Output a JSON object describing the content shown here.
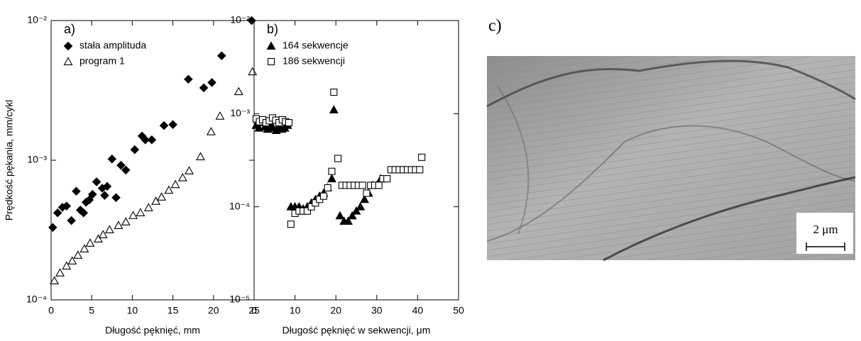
{
  "chart_data": [
    {
      "type": "scatter",
      "title": "a)",
      "x_label": "Długość pęknięć,  mm",
      "y_label": "Prędkość pękania,  mm/cykl",
      "xlim": [
        0,
        25
      ],
      "xticks": [
        0,
        5,
        10,
        15,
        20,
        25
      ],
      "ylim": [
        0.0001,
        0.01
      ],
      "y_scale": "log",
      "yticks": [
        {
          "value": 0.0001,
          "label": "10⁻⁴"
        },
        {
          "value": 0.001,
          "label": "10⁻³"
        },
        {
          "value": 0.01,
          "label": "10⁻²"
        }
      ],
      "legend": "upper left",
      "series": [
        {
          "name": "stała amplituda",
          "marker": "diamond",
          "filled": true,
          "color": "#000000",
          "x": [
            0.2,
            0.8,
            1.4,
            1.9,
            2.5,
            3.1,
            3.6,
            4.0,
            4.3,
            4.7,
            5.1,
            5.6,
            6.3,
            6.6,
            6.9,
            7.5,
            8.0,
            8.6,
            9.2,
            10.3,
            11.2,
            11.6,
            12.4,
            13.9,
            15.0,
            16.9,
            18.8,
            19.8,
            21.0,
            24.7
          ],
          "values": [
            0.00033,
            0.00042,
            0.00046,
            0.00047,
            0.00037,
            0.0006,
            0.00044,
            0.00042,
            0.0005,
            0.00052,
            0.00057,
            0.0007,
            0.00063,
            0.00056,
            0.00065,
            0.00102,
            0.00054,
            0.00092,
            0.00085,
            0.00119,
            0.00149,
            0.0014,
            0.0014,
            0.00177,
            0.0018,
            0.0038,
            0.0033,
            0.0036,
            0.0056,
            0.01
          ]
        },
        {
          "name": "program 1",
          "marker": "triangle",
          "filled": false,
          "color": "#000000",
          "x": [
            0.4,
            1.1,
            1.9,
            2.6,
            3.3,
            4.1,
            4.8,
            5.8,
            6.4,
            7.2,
            8.3,
            9.2,
            10.1,
            11.0,
            12.0,
            12.9,
            13.6,
            14.5,
            15.3,
            16.2,
            17.0,
            18.4,
            19.7,
            20.8,
            23.1,
            24.8
          ],
          "values": [
            0.000137,
            0.000156,
            0.000175,
            0.00019,
            0.000209,
            0.000232,
            0.000255,
            0.000273,
            0.000293,
            0.000318,
            0.000341,
            0.000362,
            0.000402,
            0.000421,
            0.000457,
            0.000508,
            0.000545,
            0.00061,
            0.00067,
            0.00075,
            0.00084,
            0.00106,
            0.0016,
            0.00207,
            0.0031,
            0.0043
          ]
        }
      ]
    },
    {
      "type": "scatter",
      "title": "b)",
      "x_label": "Długość pęknięć w sekwencji, μm",
      "xlim": [
        0,
        50
      ],
      "xticks": [
        0,
        10,
        20,
        30,
        40,
        50
      ],
      "ylim": [
        1e-05,
        0.01
      ],
      "y_scale": "log",
      "yticks": [
        {
          "value": 1e-05,
          "label": "10⁻⁵"
        },
        {
          "value": 0.0001,
          "label": "10⁻⁴"
        },
        {
          "value": 0.001,
          "label": "10⁻³"
        },
        {
          "value": 0.01,
          "label": "10⁻²"
        }
      ],
      "legend": "upper left",
      "series": [
        {
          "name": "164 sekwencje",
          "marker": "triangle",
          "filled": true,
          "color": "#000000",
          "x": [
            0.5,
            1.2,
            1.9,
            2.6,
            3.3,
            4.0,
            4.7,
            5.4,
            6.1,
            6.8,
            7.5,
            8.2,
            9,
            10,
            11,
            12,
            13,
            14,
            15,
            16,
            17,
            18,
            19,
            19.5,
            21,
            22,
            23,
            24,
            25,
            26,
            27,
            28,
            29,
            30,
            31
          ],
          "values": [
            0.00075,
            0.0007,
            0.0008,
            0.00072,
            0.00068,
            0.00075,
            0.0007,
            0.00066,
            0.00072,
            0.00068,
            0.0007,
            0.00075,
            0.0001,
            0.0001,
            0.0001,
            9.5e-05,
            0.0001,
            0.00011,
            0.00012,
            0.00013,
            0.00014,
            0.00016,
            0.0002,
            0.0011,
            8e-05,
            7e-05,
            7e-05,
            8e-05,
            9e-05,
            0.0001,
            0.00012,
            0.00014,
            0.00017,
            0.00017,
            0.0002
          ]
        },
        {
          "name": "186 sekwencji",
          "marker": "square",
          "filled": false,
          "color": "#000000",
          "x": [
            0.5,
            1.3,
            2.1,
            2.9,
            3.7,
            4.5,
            5.3,
            6.1,
            6.9,
            7.7,
            8.5,
            9,
            10,
            11,
            12,
            13,
            14,
            15,
            16,
            17,
            18,
            19,
            19.5,
            20.5,
            21.5,
            22.5,
            23.5,
            24.5,
            25.5,
            26.5,
            27.5,
            28.5,
            29.5,
            30.5,
            31.5,
            32.5,
            33.5,
            34.5,
            35.5,
            36.5,
            37.5,
            38.5,
            39.5,
            40.5,
            41
          ],
          "values": [
            0.00088,
            0.00082,
            0.00086,
            0.0008,
            0.00084,
            0.0009,
            0.00085,
            0.0008,
            0.00086,
            0.00082,
            0.0008,
            6.5e-05,
            8.5e-05,
            9e-05,
            9e-05,
            9e-05,
            0.0001,
            0.00011,
            0.00012,
            0.00013,
            0.00016,
            0.00024,
            0.0017,
            0.00033,
            0.00017,
            0.00017,
            0.00017,
            0.00017,
            0.00017,
            0.00017,
            0.00014,
            0.00017,
            0.00017,
            0.00017,
            0.0002,
            0.0002,
            0.00025,
            0.00025,
            0.00025,
            0.00025,
            0.00025,
            0.00025,
            0.00025,
            0.00025,
            0.00034
          ]
        }
      ]
    }
  ],
  "panel_c": {
    "label": "c)",
    "scale_label": "2 μm"
  }
}
